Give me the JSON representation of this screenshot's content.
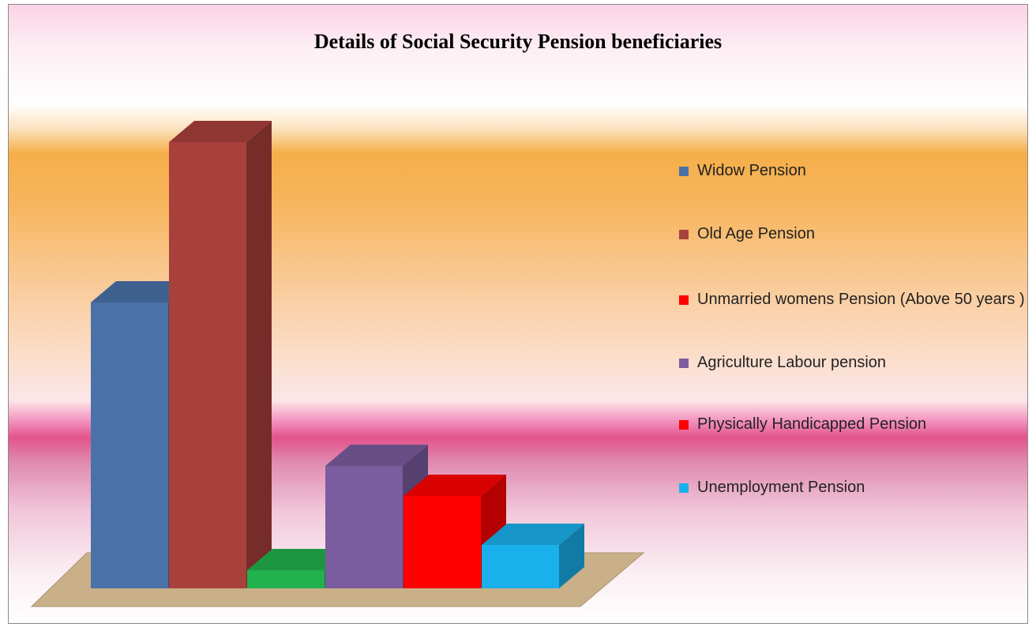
{
  "chart_data": {
    "type": "bar3d",
    "title": "Details of Social Security Pension beneficiaries",
    "categories": [
      "Widow Pension",
      "Old Age Pension",
      "Unmarried womens  Pension (Above 50 years )",
      "Agriculture Labour pension",
      "Physically Handicapped Pension",
      "Unemployment Pension"
    ],
    "values": [
      362,
      565,
      23,
      155,
      117,
      55
    ],
    "colors": [
      "#4a72a8",
      "#a8403c",
      "#22b14c",
      "#7b5c9e",
      "#ff0000",
      "#1ab0ec"
    ],
    "legend_colors": [
      "#4a72a8",
      "#a8403c",
      "#ff0000",
      "#7b5c9e",
      "#ff0000",
      "#1ab0ec"
    ],
    "legend": "right"
  }
}
